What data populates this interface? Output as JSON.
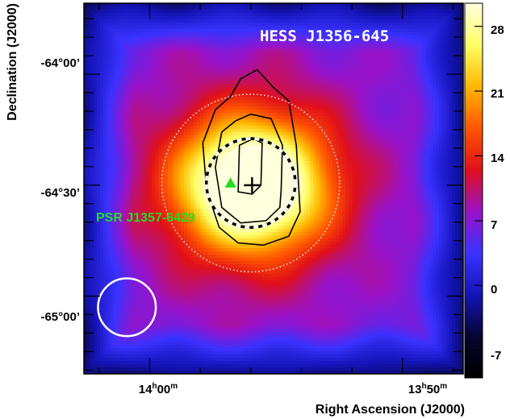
{
  "chart_data": {
    "type": "heatmap",
    "title": "HESS J1356-645",
    "xlabel": "Right Ascension (J2000)",
    "ylabel": "Declination (J2000)",
    "x_ticks": [
      {
        "label": "14",
        "sup1": "h",
        "mid": "00",
        "sup2": "m",
        "value_min": 840.0
      },
      {
        "label": "13",
        "sup1": "h",
        "mid": "50",
        "sup2": "m",
        "value_min": 830.0
      }
    ],
    "y_ticks": [
      {
        "label": "-64°00’",
        "value_deg": -64.0
      },
      {
        "label": "-64°30’",
        "value_deg": -64.5
      },
      {
        "label": "-65°00’",
        "value_deg": -65.0
      }
    ],
    "xlim_ra_min": [
      842.6,
      827.6
    ],
    "ylim_dec_deg": [
      -65.35,
      -63.68
    ],
    "colorbar": {
      "ticks": [
        "28",
        "21",
        "14",
        "7",
        "0",
        "-7"
      ],
      "tick_values": [
        28,
        21,
        14,
        7,
        0,
        -7
      ],
      "range": [
        -10,
        30.5
      ],
      "colormap": [
        "#000000",
        "#050530",
        "#1414b8",
        "#3a32ff",
        "#9a12c8",
        "#e0101a",
        "#ff5500",
        "#ffb800",
        "#ffff66",
        "#ffffdd"
      ]
    },
    "source": {
      "ra_min": 835.95,
      "dec_deg": -64.5,
      "peak_value": 29,
      "sigma_arcmin": 12
    },
    "markers": [
      {
        "kind": "best-fit-position",
        "symbol": "+",
        "ra_min": 835.95,
        "dec_deg": -64.5
      },
      {
        "kind": "pulsar",
        "symbol": "triangle",
        "label": "PSR J1357-6429",
        "ra_min": 836.8,
        "dec_deg": -64.49,
        "color": "#22dd22"
      }
    ],
    "circles": [
      {
        "kind": "extension-dashed",
        "ra_min": 836.0,
        "dec_deg": -64.49,
        "radius_deg": 0.2
      },
      {
        "kind": "integration-region-dotted",
        "ra_min": 836.0,
        "dec_deg": -64.49,
        "radius_deg": 0.4
      },
      {
        "kind": "psf",
        "ra_min": 840.9,
        "dec_deg": -65.05,
        "radius_deg": 0.13
      }
    ],
    "contours": [
      {
        "level": "inner",
        "points": [
          [
            835.9,
            -64.29
          ],
          [
            835.55,
            -64.31
          ],
          [
            835.6,
            -64.5
          ],
          [
            835.95,
            -64.54
          ],
          [
            836.5,
            -64.53
          ],
          [
            836.45,
            -64.32
          ],
          [
            835.9,
            -64.29
          ]
        ]
      },
      {
        "level": "middle",
        "points": [
          [
            836.0,
            -64.18
          ],
          [
            835.2,
            -64.2
          ],
          [
            834.75,
            -64.32
          ],
          [
            834.8,
            -64.52
          ],
          [
            834.85,
            -64.6
          ],
          [
            835.4,
            -64.66
          ],
          [
            836.4,
            -64.67
          ],
          [
            837.15,
            -64.6
          ],
          [
            837.4,
            -64.42
          ],
          [
            837.15,
            -64.26
          ],
          [
            836.6,
            -64.21
          ],
          [
            836.0,
            -64.18
          ]
        ]
      },
      {
        "level": "outer",
        "points": [
          [
            835.75,
            -63.98
          ],
          [
            835.1,
            -64.06
          ],
          [
            834.5,
            -64.12
          ],
          [
            834.2,
            -64.32
          ],
          [
            834.05,
            -64.62
          ],
          [
            834.5,
            -64.73
          ],
          [
            835.5,
            -64.77
          ],
          [
            836.5,
            -64.76
          ],
          [
            837.25,
            -64.69
          ],
          [
            837.75,
            -64.52
          ],
          [
            837.9,
            -64.31
          ],
          [
            837.4,
            -64.16
          ],
          [
            836.8,
            -64.1
          ],
          [
            836.4,
            -64.02
          ],
          [
            835.75,
            -63.98
          ]
        ]
      }
    ]
  }
}
